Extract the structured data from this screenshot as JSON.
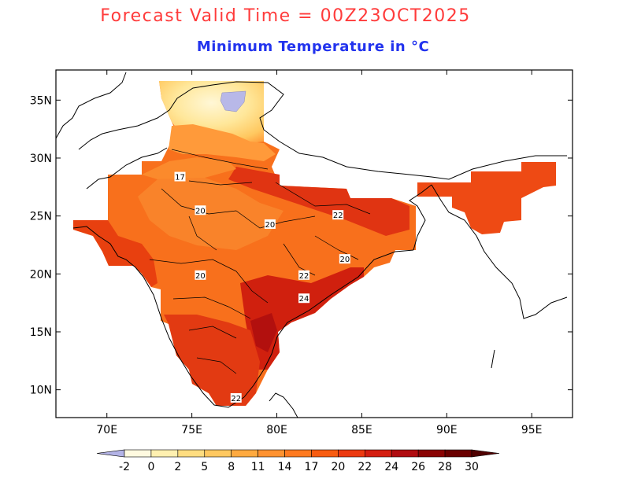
{
  "title": "Forecast Valid Time = 00Z23OCT2025",
  "subtitle": "Minimum Temperature in °C",
  "map": {
    "lat_labels": [
      {
        "text": "35N",
        "lat": 35
      },
      {
        "text": "30N",
        "lat": 30
      },
      {
        "text": "25N",
        "lat": 25
      },
      {
        "text": "20N",
        "lat": 20
      },
      {
        "text": "15N",
        "lat": 15
      },
      {
        "text": "10N",
        "lat": 10
      }
    ],
    "lon_labels": [
      {
        "text": "70E",
        "lon": 70
      },
      {
        "text": "75E",
        "lon": 75
      },
      {
        "text": "80E",
        "lon": 80
      },
      {
        "text": "85E",
        "lon": 85
      },
      {
        "text": "90E",
        "lon": 90
      },
      {
        "text": "95E",
        "lon": 95
      }
    ],
    "contour_labels": [
      {
        "text": "17",
        "lon": 74.3,
        "lat": 28.4
      },
      {
        "text": "20",
        "lon": 75.5,
        "lat": 25.5
      },
      {
        "text": "22",
        "lon": 83.6,
        "lat": 25.1
      },
      {
        "text": "20",
        "lon": 79.6,
        "lat": 24.3
      },
      {
        "text": "20",
        "lon": 84.0,
        "lat": 21.3
      },
      {
        "text": "20",
        "lon": 75.5,
        "lat": 19.9
      },
      {
        "text": "22",
        "lon": 81.6,
        "lat": 19.9
      },
      {
        "text": "24",
        "lon": 81.6,
        "lat": 17.9
      },
      {
        "text": "22",
        "lon": 77.6,
        "lat": 9.3
      }
    ]
  },
  "colorbar": {
    "tick_labels": [
      "-2",
      "0",
      "2",
      "5",
      "8",
      "11",
      "14",
      "17",
      "20",
      "22",
      "24",
      "26",
      "28",
      "30"
    ],
    "colors": [
      "#b3b3e6",
      "#fffae0",
      "#fff0b0",
      "#ffdd80",
      "#ffc860",
      "#ffaa40",
      "#ff9230",
      "#ff7a20",
      "#f85c10",
      "#ec3a10",
      "#d41e10",
      "#b00c10",
      "#8a0404",
      "#6a0000",
      "#500000"
    ]
  }
}
